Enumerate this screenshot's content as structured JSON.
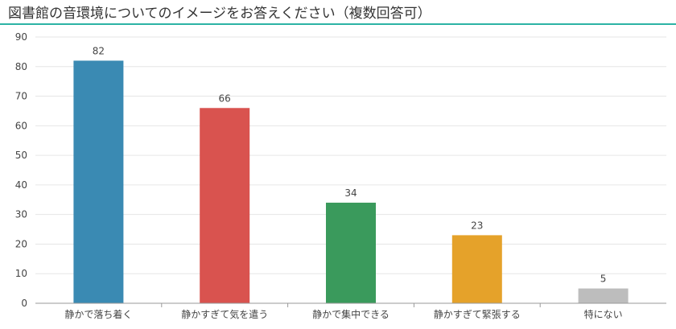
{
  "chart_data": {
    "type": "bar",
    "title": "図書館の音環境についてのイメージをお答えください（複数回答可）",
    "categories": [
      "静かで落ち着く",
      "静かすぎて気を遣う",
      "静かで集中できる",
      "静かすぎて緊張する",
      "特にない"
    ],
    "values": [
      82,
      66,
      34,
      23,
      5
    ],
    "colors": [
      "#3a8ab3",
      "#d9534f",
      "#3a9a5c",
      "#e5a22a",
      "#bdbdbd"
    ],
    "xlabel": "",
    "ylabel": "",
    "ylim": [
      0,
      90
    ],
    "yticks": [
      0,
      10,
      20,
      30,
      40,
      50,
      60,
      70,
      80,
      90
    ],
    "grid": true,
    "legend": "none"
  }
}
